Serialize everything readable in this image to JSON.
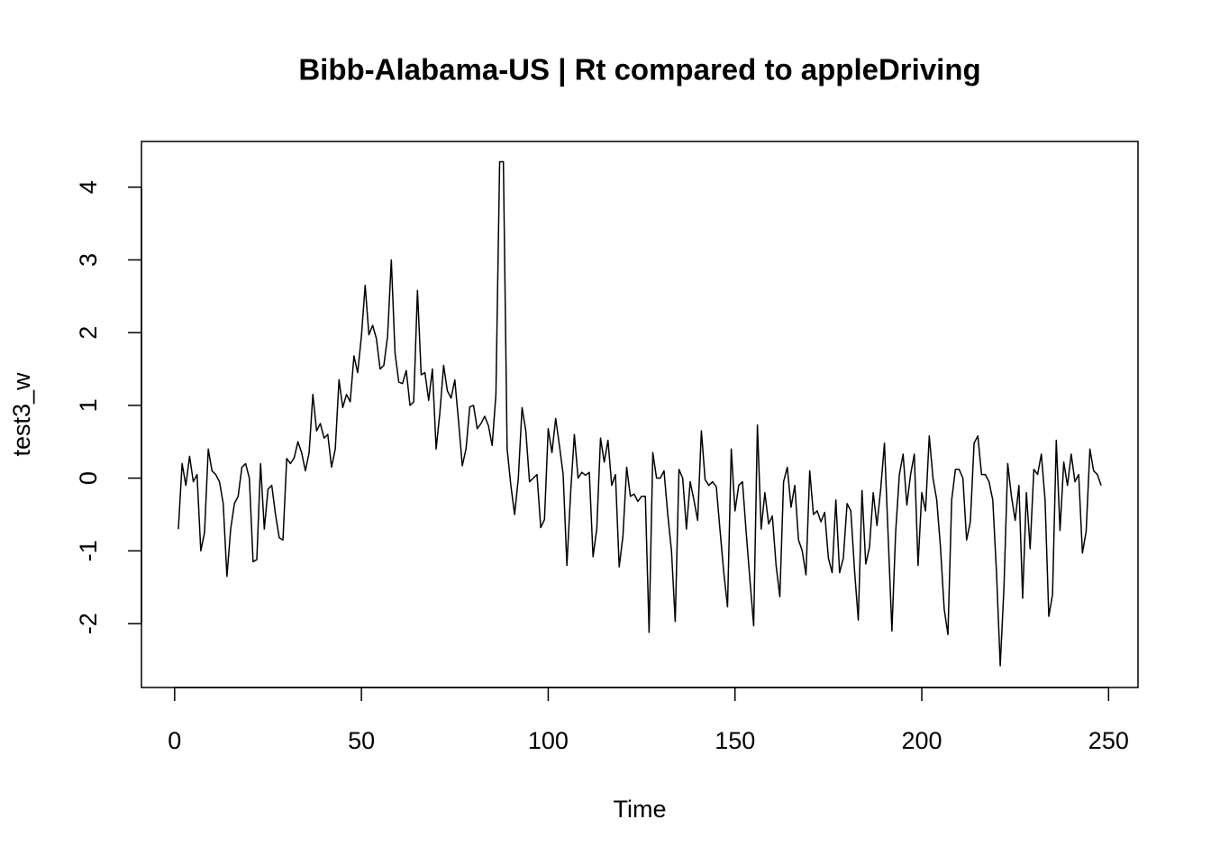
{
  "chart_data": {
    "type": "line",
    "title": "Bibb-Alabama-US | Rt compared to appleDriving",
    "x_label": "Time",
    "y_label": "test3_w",
    "color": "#000000",
    "x": [
      1,
      2,
      3,
      4,
      5,
      6,
      7,
      8,
      9,
      10,
      11,
      12,
      13,
      14,
      15,
      16,
      17,
      18,
      19,
      20,
      21,
      22,
      23,
      24,
      25,
      26,
      27,
      28,
      29,
      30,
      31,
      32,
      33,
      34,
      35,
      36,
      37,
      38,
      39,
      40,
      41,
      42,
      43,
      44,
      45,
      46,
      47,
      48,
      49,
      50,
      51,
      52,
      53,
      54,
      55,
      56,
      57,
      58,
      59,
      60,
      61,
      62,
      63,
      64,
      65,
      66,
      67,
      68,
      69,
      70,
      71,
      72,
      73,
      74,
      75,
      76,
      77,
      78,
      79,
      80,
      81,
      82,
      83,
      84,
      85,
      86,
      87,
      88,
      89,
      90,
      91,
      92,
      93,
      94,
      95,
      96,
      97,
      98,
      99,
      100,
      101,
      102,
      103,
      104,
      105,
      106,
      107,
      108,
      109,
      110,
      111,
      112,
      113,
      114,
      115,
      116,
      117,
      118,
      119,
      120,
      121,
      122,
      123,
      124,
      125,
      126,
      127,
      128,
      129,
      130,
      131,
      132,
      133,
      134,
      135,
      136,
      137,
      138,
      139,
      140,
      141,
      142,
      143,
      144,
      145,
      146,
      147,
      148,
      149,
      150,
      151,
      152,
      153,
      154,
      155,
      156,
      157,
      158,
      159,
      160,
      161,
      162,
      163,
      164,
      165,
      166,
      167,
      168,
      169,
      170,
      171,
      172,
      173,
      174,
      175,
      176,
      177,
      178,
      179,
      180,
      181,
      182,
      183,
      184,
      185,
      186,
      187,
      188,
      189,
      190,
      191,
      192,
      193,
      194,
      195,
      196,
      197,
      198,
      199,
      200,
      201,
      202,
      203,
      204,
      205,
      206,
      207,
      208,
      209,
      210,
      211,
      212,
      213,
      214,
      215,
      216,
      217,
      218,
      219,
      220,
      221,
      222,
      223,
      224,
      225,
      226,
      227,
      228,
      229,
      230,
      231,
      232,
      233,
      234,
      235,
      236,
      237,
      238,
      239,
      240,
      241,
      242,
      243,
      244,
      245,
      246,
      247,
      248
    ],
    "values": [
      -0.7,
      0.2,
      -0.1,
      0.3,
      -0.05,
      0.05,
      -1.0,
      -0.75,
      0.4,
      0.1,
      0.05,
      -0.05,
      -0.35,
      -1.35,
      -0.7,
      -0.35,
      -0.25,
      0.15,
      0.2,
      0.0,
      -1.15,
      -1.12,
      0.2,
      -0.7,
      -0.15,
      -0.1,
      -0.5,
      -0.82,
      -0.85,
      0.27,
      0.2,
      0.28,
      0.5,
      0.35,
      0.1,
      0.35,
      1.15,
      0.65,
      0.75,
      0.55,
      0.6,
      0.15,
      0.4,
      1.35,
      0.97,
      1.15,
      1.05,
      1.68,
      1.45,
      1.95,
      2.65,
      1.97,
      2.1,
      1.92,
      1.5,
      1.55,
      1.95,
      3.0,
      1.72,
      1.32,
      1.3,
      1.48,
      1.0,
      1.05,
      2.58,
      1.42,
      1.45,
      1.07,
      1.5,
      0.4,
      0.9,
      1.55,
      1.2,
      1.1,
      1.35,
      0.78,
      0.17,
      0.4,
      0.98,
      1.0,
      0.68,
      0.75,
      0.85,
      0.72,
      0.45,
      1.15,
      4.35,
      4.35,
      0.4,
      -0.1,
      -0.5,
      0.0,
      0.97,
      0.65,
      -0.05,
      0.0,
      0.05,
      -0.68,
      -0.57,
      0.68,
      0.35,
      0.82,
      0.45,
      0.05,
      -1.2,
      -0.2,
      0.6,
      0.0,
      0.08,
      0.04,
      0.08,
      -1.08,
      -0.7,
      0.55,
      0.22,
      0.52,
      -0.1,
      0.05,
      -1.22,
      -0.8,
      0.15,
      -0.25,
      -0.22,
      -0.32,
      -0.25,
      -0.25,
      -2.12,
      0.35,
      0.0,
      0.0,
      0.1,
      -0.5,
      -1.0,
      -1.97,
      0.12,
      0.0,
      -0.7,
      -0.05,
      -0.3,
      -0.58,
      0.65,
      -0.02,
      -0.1,
      -0.05,
      -0.12,
      -0.72,
      -1.3,
      -1.77,
      0.4,
      -0.45,
      -0.1,
      -0.05,
      -0.75,
      -1.4,
      -2.03,
      0.73,
      -0.7,
      -0.2,
      -0.63,
      -0.52,
      -1.2,
      -1.63,
      -0.05,
      0.15,
      -0.4,
      -0.1,
      -0.85,
      -1.0,
      -1.33,
      0.1,
      -0.5,
      -0.45,
      -0.6,
      -0.47,
      -1.1,
      -1.3,
      -0.3,
      -1.3,
      -1.1,
      -0.35,
      -0.45,
      -1.27,
      -1.95,
      -0.17,
      -1.18,
      -0.95,
      -0.2,
      -0.65,
      -0.15,
      0.48,
      -0.8,
      -2.1,
      -0.75,
      0.05,
      0.33,
      -0.37,
      0.05,
      0.33,
      -1.2,
      -0.2,
      -0.45,
      0.58,
      0.0,
      -0.3,
      -0.95,
      -1.8,
      -2.15,
      -0.3,
      0.12,
      0.12,
      0.0,
      -0.85,
      -0.6,
      0.48,
      0.58,
      0.05,
      0.05,
      -0.05,
      -0.3,
      -1.3,
      -2.58,
      -1.5,
      0.2,
      -0.25,
      -0.58,
      -0.1,
      -1.65,
      -0.2,
      -0.97,
      0.12,
      0.05,
      0.33,
      -0.3,
      -1.9,
      -1.6,
      0.52,
      -0.72,
      0.22,
      -0.1,
      0.33,
      -0.05,
      0.05,
      -1.03,
      -0.73,
      0.4,
      0.1,
      0.05,
      -0.1
    ],
    "xlim": [
      -8.88,
      257.88
    ],
    "xticks": [
      0,
      50,
      100,
      150,
      200,
      250
    ],
    "ylim": [
      -2.878,
      4.628
    ],
    "yticks": [
      -2,
      -1,
      0,
      1,
      2,
      3,
      4
    ]
  }
}
